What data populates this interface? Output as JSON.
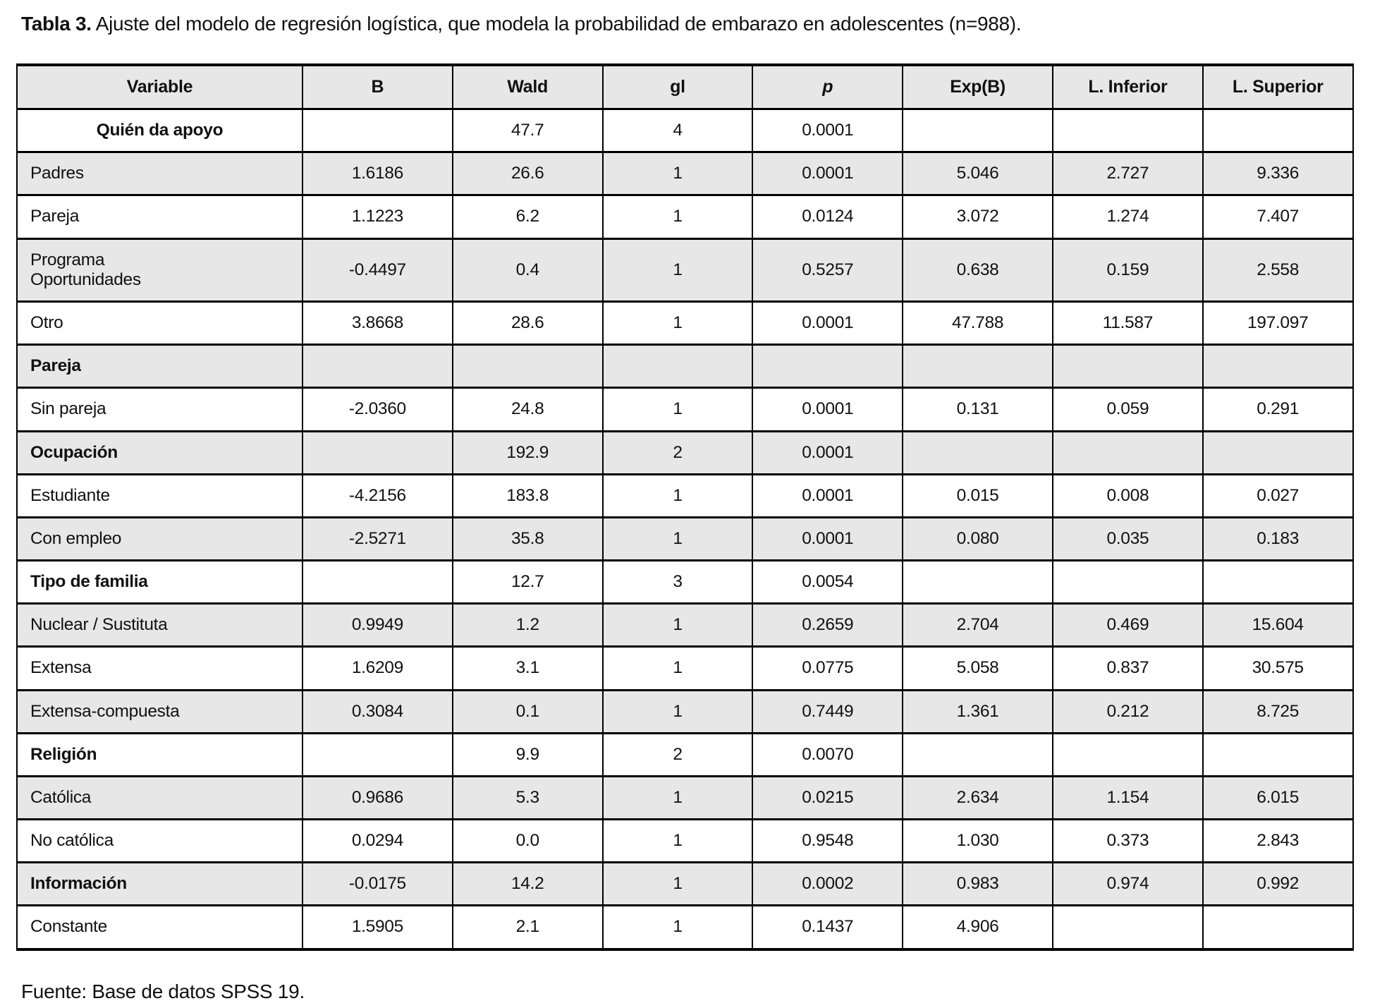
{
  "title": {
    "label": "Tabla 3.",
    "text": " Ajuste del modelo de regresión logística, que modela la probabilidad de embarazo en adolescentes (n=988)."
  },
  "table": {
    "columns": [
      "Variable",
      "B",
      "Wald",
      "gl",
      "p",
      "Exp(B)",
      "L. Inferior",
      "L. Superior"
    ],
    "rows": [
      {
        "style": "group-center",
        "cells": [
          "Quién da apoyo",
          "",
          "47.7",
          "4",
          "0.0001",
          "",
          "",
          ""
        ]
      },
      {
        "style": "item",
        "cells": [
          "Padres",
          "1.6186",
          "26.6",
          "1",
          "0.0001",
          "5.046",
          "2.727",
          "9.336"
        ]
      },
      {
        "style": "item",
        "cells": [
          "Pareja",
          "1.1223",
          "6.2",
          "1",
          "0.0124",
          "3.072",
          "1.274",
          "7.407"
        ]
      },
      {
        "style": "item",
        "cells": [
          "Programa\nOportunidades",
          "-0.4497",
          "0.4",
          "1",
          "0.5257",
          "0.638",
          "0.159",
          "2.558"
        ]
      },
      {
        "style": "item",
        "cells": [
          "Otro",
          "3.8668",
          "28.6",
          "1",
          "0.0001",
          "47.788",
          "11.587",
          "197.097"
        ]
      },
      {
        "style": "group",
        "cells": [
          "Pareja",
          "",
          "",
          "",
          "",
          "",
          "",
          ""
        ]
      },
      {
        "style": "item",
        "cells": [
          "Sin pareja",
          "-2.0360",
          "24.8",
          "1",
          "0.0001",
          "0.131",
          "0.059",
          "0.291"
        ]
      },
      {
        "style": "group",
        "cells": [
          "Ocupación",
          "",
          "192.9",
          "2",
          "0.0001",
          "",
          "",
          ""
        ]
      },
      {
        "style": "item",
        "cells": [
          "Estudiante",
          "-4.2156",
          "183.8",
          "1",
          "0.0001",
          "0.015",
          "0.008",
          "0.027"
        ]
      },
      {
        "style": "item",
        "cells": [
          "Con empleo",
          "-2.5271",
          "35.8",
          "1",
          "0.0001",
          "0.080",
          "0.035",
          "0.183"
        ]
      },
      {
        "style": "group",
        "cells": [
          "Tipo de familia",
          "",
          "12.7",
          "3",
          "0.0054",
          "",
          "",
          ""
        ]
      },
      {
        "style": "item",
        "cells": [
          "Nuclear / Sustituta",
          "0.9949",
          "1.2",
          "1",
          "0.2659",
          "2.704",
          "0.469",
          "15.604"
        ]
      },
      {
        "style": "item",
        "cells": [
          "Extensa",
          "1.6209",
          "3.1",
          "1",
          "0.0775",
          "5.058",
          "0.837",
          "30.575"
        ]
      },
      {
        "style": "item",
        "cells": [
          "Extensa-compuesta",
          "0.3084",
          "0.1",
          "1",
          "0.7449",
          "1.361",
          "0.212",
          "8.725"
        ]
      },
      {
        "style": "group",
        "cells": [
          "Religión",
          "",
          "9.9",
          "2",
          "0.0070",
          "",
          "",
          ""
        ]
      },
      {
        "style": "item",
        "cells": [
          "Católica",
          "0.9686",
          "5.3",
          "1",
          "0.0215",
          "2.634",
          "1.154",
          "6.015"
        ]
      },
      {
        "style": "item",
        "cells": [
          "No católica",
          "0.0294",
          "0.0",
          "1",
          "0.9548",
          "1.030",
          "0.373",
          "2.843"
        ]
      },
      {
        "style": "group",
        "cells": [
          "Información",
          "-0.0175",
          "14.2",
          "1",
          "0.0002",
          "0.983",
          "0.974",
          "0.992"
        ]
      },
      {
        "style": "item",
        "cells": [
          "Constante",
          "1.5905",
          "2.1",
          "1",
          "0.1437",
          "4.906",
          "",
          ""
        ]
      }
    ]
  },
  "footer": {
    "text": "Fuente: Base de datos SPSS 19."
  },
  "colors": {
    "shaded_row": "#e7e7e7",
    "border": "#000000",
    "text": "#111111",
    "background": "#ffffff"
  }
}
